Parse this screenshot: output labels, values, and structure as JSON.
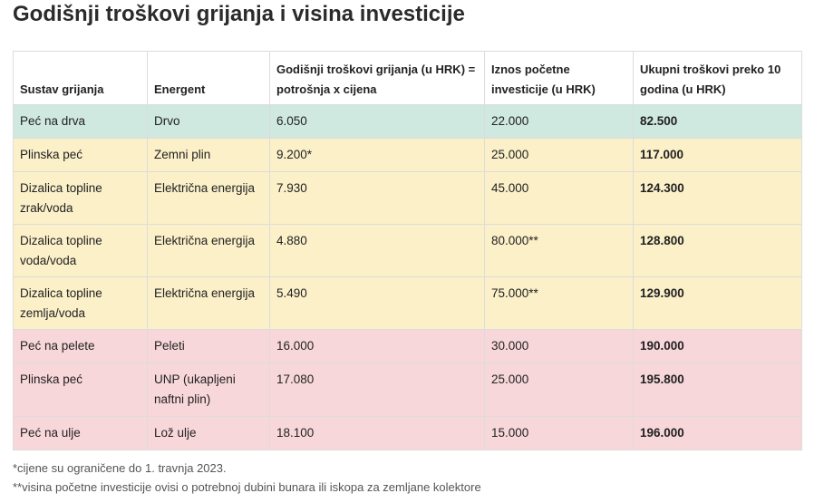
{
  "title": "Godišnji troškovi grijanja i visina investicije",
  "colors": {
    "green": "#cfe8e0",
    "yellow": "#fcf0c9",
    "pink": "#f8d7da",
    "border": "#dcdcdc"
  },
  "table": {
    "headers": [
      "Sustav grijanja",
      "Energent",
      "Godišnji troškovi grijanja (u HRK) = potrošnja x cijena",
      "Iznos početne investicije (u HRK)",
      "Ukupni troškovi preko 10 godina (u HRK)"
    ],
    "rows": [
      {
        "system": "Peć na drva",
        "energy": "Drvo",
        "annual": "6.050",
        "investment": "22.000",
        "total": "82.500",
        "color": "green"
      },
      {
        "system": "Plinska peć",
        "energy": "Zemni plin",
        "annual": "9.200*",
        "investment": "25.000",
        "total": "117.000",
        "color": "yellow"
      },
      {
        "system": "Dizalica topline zrak/voda",
        "energy": "Električna energija",
        "annual": "7.930",
        "investment": "45.000",
        "total": "124.300",
        "color": "yellow"
      },
      {
        "system": "Dizalica topline voda/voda",
        "energy": "Električna energija",
        "annual": "4.880",
        "investment": "80.000**",
        "total": "128.800",
        "color": "yellow"
      },
      {
        "system": "Dizalica topline zemlja/voda",
        "energy": "Električna energija",
        "annual": "5.490",
        "investment": "75.000**",
        "total": "129.900",
        "color": "yellow"
      },
      {
        "system": "Peć na pelete",
        "energy": "Peleti",
        "annual": "16.000",
        "investment": "30.000",
        "total": "190.000",
        "color": "pink"
      },
      {
        "system": "Plinska peć",
        "energy": "UNP (ukapljeni naftni plin)",
        "annual": "17.080",
        "investment": "25.000",
        "total": "195.800",
        "color": "pink"
      },
      {
        "system": "Peć na ulje",
        "energy": "Lož ulje",
        "annual": "18.100",
        "investment": "15.000",
        "total": "196.000",
        "color": "pink"
      }
    ]
  },
  "footnotes": [
    "*cijene su ograničene do 1. travnja 2023.",
    "**visina početne investicije ovisi o potrebnoj dubini bunara ili iskopa za zemljane kolektore"
  ]
}
